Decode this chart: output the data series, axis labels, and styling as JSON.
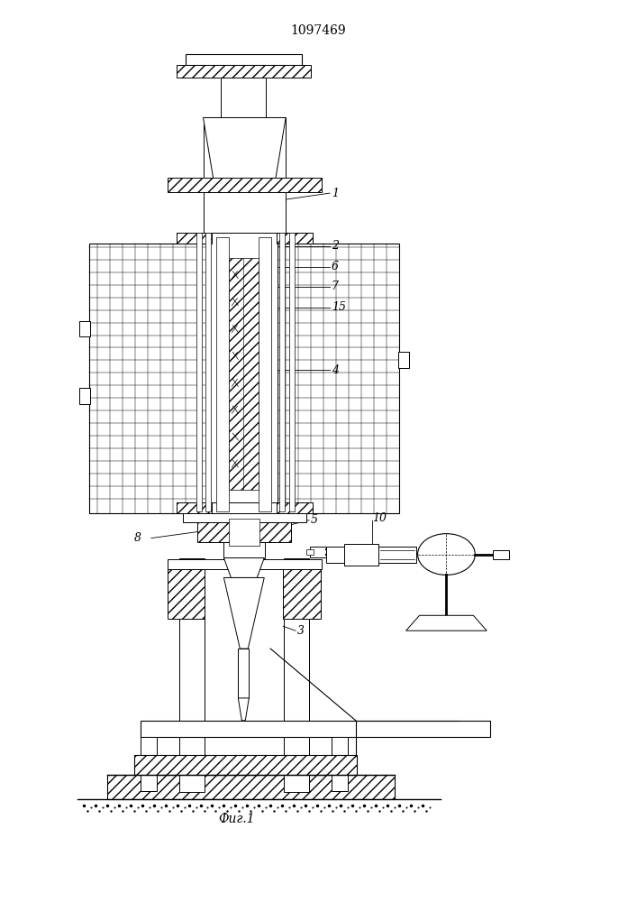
{
  "title": "1097469",
  "caption": "Фиг.1",
  "title_fontsize": 10,
  "caption_fontsize": 10,
  "bg_color": "#ffffff",
  "line_color": "#000000",
  "figsize": [
    7.07,
    10.0
  ],
  "dpi": 100
}
